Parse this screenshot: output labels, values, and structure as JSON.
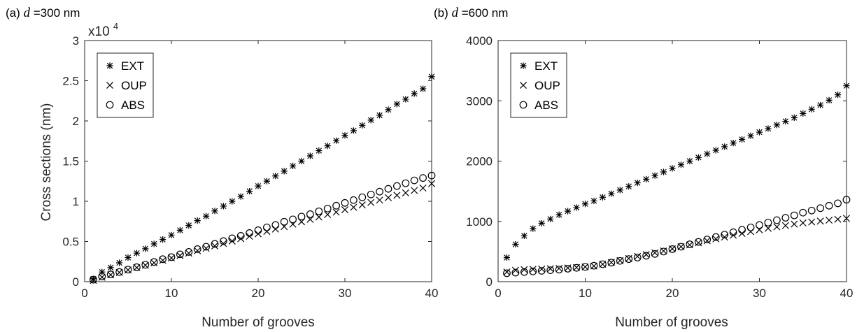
{
  "colors": {
    "marker": "#000000",
    "axis": "#262626",
    "background": "#ffffff"
  },
  "chart_data": [
    {
      "type": "scatter",
      "panel_label": "(a)",
      "title_var": "d",
      "title_rest": "=300 nm",
      "xlabel": "Number of grooves",
      "ylabel": "Cross sections (nm)",
      "xlim": [
        0,
        40
      ],
      "ylim": [
        0,
        30000
      ],
      "xticks": [
        0,
        10,
        20,
        30,
        40
      ],
      "yticks": [
        0,
        5000,
        10000,
        15000,
        20000,
        25000,
        30000
      ],
      "ytick_labels": [
        "0",
        "0.5",
        "1",
        "1.5",
        "2",
        "2.5",
        "3"
      ],
      "exponent_base": "x10",
      "exponent_power": "4",
      "grid": false,
      "legend_position": "top-left",
      "x": [
        1,
        2,
        3,
        4,
        5,
        6,
        7,
        8,
        9,
        10,
        11,
        12,
        13,
        14,
        15,
        16,
        17,
        18,
        19,
        20,
        21,
        22,
        23,
        24,
        25,
        26,
        27,
        28,
        29,
        30,
        31,
        32,
        33,
        34,
        35,
        36,
        37,
        38,
        39,
        40
      ],
      "series": [
        {
          "name": "EXT",
          "marker": "asterisk",
          "values": [
            350,
            1200,
            1750,
            2350,
            3000,
            3550,
            4100,
            4700,
            5250,
            5800,
            6400,
            7000,
            7600,
            8150,
            8800,
            9400,
            10000,
            10600,
            11250,
            11900,
            12500,
            13150,
            13750,
            14400,
            15000,
            15650,
            16300,
            16900,
            17550,
            18200,
            18800,
            19450,
            20100,
            20700,
            21400,
            22100,
            22700,
            23400,
            24000,
            25500
          ]
        },
        {
          "name": "OUP",
          "marker": "x",
          "values": [
            150,
            550,
            850,
            1150,
            1450,
            1750,
            2050,
            2350,
            2650,
            2950,
            3250,
            3550,
            3850,
            4150,
            4450,
            4750,
            5050,
            5350,
            5650,
            5950,
            6250,
            6550,
            6850,
            7150,
            7450,
            7750,
            8050,
            8350,
            8650,
            8950,
            9250,
            9550,
            9850,
            10150,
            10450,
            10750,
            11050,
            11350,
            11650,
            12200
          ]
        },
        {
          "name": "ABS",
          "marker": "circle",
          "values": [
            250,
            650,
            900,
            1200,
            1500,
            1800,
            2100,
            2450,
            2800,
            3050,
            3400,
            3700,
            4050,
            4350,
            4700,
            5050,
            5400,
            5700,
            6050,
            6400,
            6750,
            7050,
            7450,
            7750,
            8100,
            8400,
            8750,
            9100,
            9450,
            9800,
            10150,
            10500,
            10850,
            11200,
            11550,
            11900,
            12250,
            12600,
            12900,
            13200
          ]
        }
      ]
    },
    {
      "type": "scatter",
      "panel_label": "(b)",
      "title_var": "d",
      "title_rest": "=600 nm",
      "xlabel": "Number of grooves",
      "ylabel": "",
      "xlim": [
        0,
        40
      ],
      "ylim": [
        0,
        4000
      ],
      "xticks": [
        0,
        10,
        20,
        30,
        40
      ],
      "yticks": [
        0,
        1000,
        2000,
        3000,
        4000
      ],
      "ytick_labels": [
        "0",
        "1000",
        "2000",
        "3000",
        "4000"
      ],
      "grid": false,
      "legend_position": "top-left",
      "x": [
        1,
        2,
        3,
        4,
        5,
        6,
        7,
        8,
        9,
        10,
        11,
        12,
        13,
        14,
        15,
        16,
        17,
        18,
        19,
        20,
        21,
        22,
        23,
        24,
        25,
        26,
        27,
        28,
        29,
        30,
        31,
        32,
        33,
        34,
        35,
        36,
        37,
        38,
        39,
        40
      ],
      "series": [
        {
          "name": "EXT",
          "marker": "asterisk",
          "values": [
            400,
            620,
            760,
            880,
            970,
            1040,
            1110,
            1170,
            1230,
            1290,
            1340,
            1400,
            1460,
            1520,
            1580,
            1640,
            1700,
            1760,
            1820,
            1880,
            1940,
            2000,
            2060,
            2120,
            2180,
            2240,
            2300,
            2360,
            2420,
            2480,
            2540,
            2600,
            2660,
            2720,
            2790,
            2860,
            2930,
            3010,
            3100,
            3250
          ]
        },
        {
          "name": "OUP",
          "marker": "x",
          "values": [
            160,
            190,
            200,
            205,
            210,
            215,
            220,
            228,
            236,
            245,
            260,
            290,
            320,
            350,
            385,
            420,
            450,
            480,
            510,
            545,
            580,
            610,
            645,
            680,
            710,
            740,
            770,
            800,
            830,
            860,
            885,
            910,
            930,
            955,
            975,
            990,
            1005,
            1020,
            1035,
            1050
          ]
        },
        {
          "name": "ABS",
          "marker": "circle",
          "values": [
            140,
            150,
            160,
            170,
            180,
            190,
            200,
            215,
            230,
            245,
            265,
            290,
            315,
            345,
            375,
            400,
            430,
            460,
            500,
            540,
            580,
            620,
            660,
            700,
            740,
            780,
            820,
            860,
            900,
            940,
            980,
            1020,
            1060,
            1100,
            1145,
            1180,
            1220,
            1260,
            1300,
            1360
          ]
        }
      ]
    }
  ]
}
